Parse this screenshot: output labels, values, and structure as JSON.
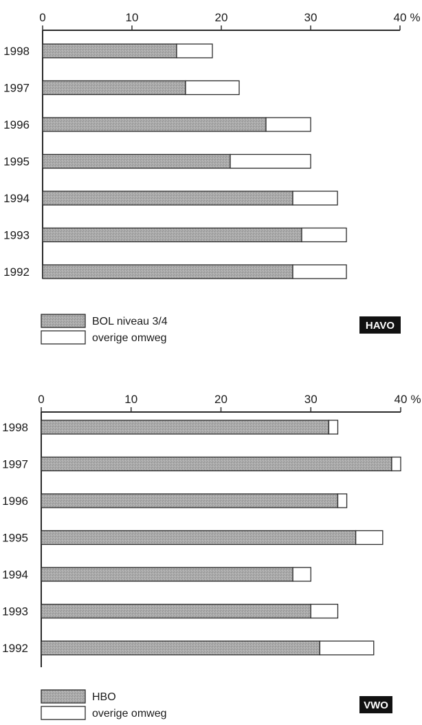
{
  "chart_data": [
    {
      "type": "bar",
      "stacked": true,
      "orientation": "horizontal",
      "badge": "HAVO",
      "categories": [
        "1998",
        "1997",
        "1996",
        "1995",
        "1994",
        "1993",
        "1992"
      ],
      "series": [
        {
          "name": "BOL niveau 3/4",
          "values": [
            15,
            16,
            25,
            21,
            28,
            29,
            28
          ]
        },
        {
          "name": "overige omweg",
          "values": [
            4,
            6,
            5,
            9,
            5,
            5,
            6
          ]
        }
      ],
      "xlim": [
        0,
        40
      ],
      "xticks": [
        "0",
        "10",
        "20",
        "30",
        "40"
      ],
      "unit": "%",
      "legend": "bottom-left"
    },
    {
      "type": "bar",
      "stacked": true,
      "orientation": "horizontal",
      "badge": "VWO",
      "categories": [
        "1998",
        "1997",
        "1996",
        "1995",
        "1994",
        "1993",
        "1992"
      ],
      "series": [
        {
          "name": "HBO",
          "values": [
            32,
            39,
            33,
            35,
            28,
            30,
            31
          ]
        },
        {
          "name": "overige omweg",
          "values": [
            1,
            1,
            1,
            3,
            2,
            3,
            6
          ]
        }
      ],
      "xlim": [
        0,
        40
      ],
      "xticks": [
        "0",
        "10",
        "20",
        "30",
        "40"
      ],
      "unit": "%",
      "legend": "bottom-left"
    }
  ],
  "colors": {
    "filled": "#a6a6a6",
    "empty": "#ffffff",
    "outline": "#2a2a2a",
    "badge": "#111111"
  }
}
